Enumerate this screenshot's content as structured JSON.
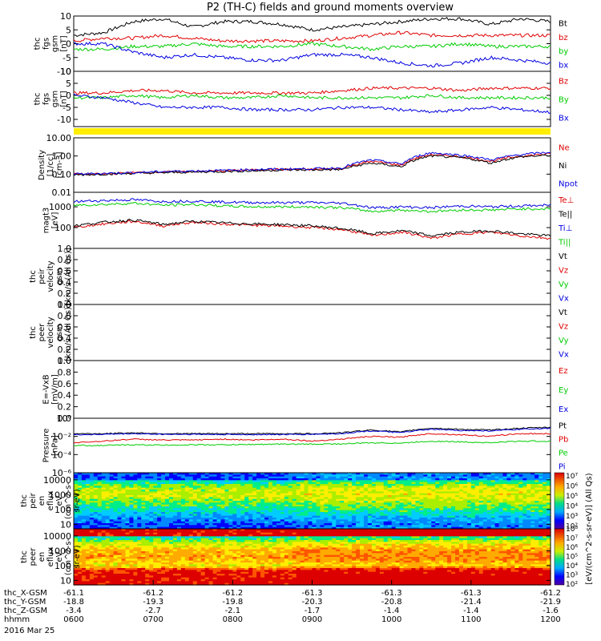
{
  "title": "P2 (TH-C) fields and ground moments overview",
  "colors": {
    "black": "#000000",
    "red": "#e00000",
    "green": "#00cc00",
    "blue": "#0000e0",
    "yellow": "#ffee00"
  },
  "chart_data": [
    {
      "type": "line",
      "ylabel": [
        "thc",
        "fgs",
        "gsm",
        "[nT]"
      ],
      "yticks": [
        10,
        5,
        0,
        -5,
        -10
      ],
      "ylim": [
        -10,
        10
      ],
      "series": [
        {
          "name": "Bt",
          "color": "black",
          "values": [
            3,
            4,
            8,
            9,
            6,
            8,
            8,
            7,
            5,
            6,
            7,
            8,
            9,
            9,
            7,
            9,
            8
          ]
        },
        {
          "name": "bz",
          "color": "red",
          "values": [
            1,
            2,
            2,
            3,
            2,
            1,
            1,
            1,
            1,
            2,
            3,
            4,
            3,
            3,
            3,
            3,
            3
          ]
        },
        {
          "name": "by",
          "color": "green",
          "values": [
            -2,
            -2,
            -1,
            -1,
            0,
            -1,
            -1,
            -1,
            0,
            -1,
            -2,
            -1,
            -1,
            0,
            -1,
            -1,
            -1
          ]
        },
        {
          "name": "bx",
          "color": "blue",
          "values": [
            0,
            0,
            -3,
            -5,
            -4,
            -5,
            -6,
            -6,
            -4,
            -4,
            -5,
            -7,
            -8,
            -7,
            -5,
            -6,
            -7
          ]
        }
      ]
    },
    {
      "type": "line",
      "ylabel": [
        "thc",
        "fgs",
        "gsm",
        "[nT]"
      ],
      "yticks": [
        10,
        5,
        0,
        -5,
        -10
      ],
      "ylim": [
        -13,
        10
      ],
      "series": [
        {
          "name": "Bz",
          "color": "red",
          "values": [
            1,
            1,
            2,
            2,
            1,
            1,
            1,
            1,
            1,
            2,
            3,
            3,
            3,
            2,
            3,
            3,
            3
          ]
        },
        {
          "name": "By",
          "color": "green",
          "values": [
            -1,
            -1,
            0,
            -1,
            0,
            -1,
            -1,
            0,
            -1,
            -1,
            -1,
            -1,
            0,
            -1,
            -1,
            -1,
            -1
          ]
        },
        {
          "name": "Bx",
          "color": "blue",
          "values": [
            0,
            -1,
            -3,
            -5,
            -5,
            -5,
            -6,
            -6,
            -6,
            -5,
            -5,
            -6,
            -7,
            -6,
            -5,
            -6,
            -7
          ]
        }
      ]
    },
    {
      "type": "line",
      "ylabel": [
        "Density",
        "[1/cc]",
        "[cm-3]"
      ],
      "yscale": "log",
      "yticks": [
        "10.00",
        "1.00",
        "0.10",
        "0.01"
      ],
      "tickvals": [
        10,
        1,
        0.1,
        0.01
      ],
      "ylim": [
        0.01,
        10
      ],
      "series": [
        {
          "name": "Ne",
          "color": "red",
          "values": [
            0.1,
            0.1,
            0.12,
            0.13,
            0.14,
            0.15,
            0.17,
            0.18,
            0.18,
            0.2,
            0.5,
            0.3,
            1.2,
            0.9,
            0.5,
            1,
            1.3
          ]
        },
        {
          "name": "Ni",
          "color": "black",
          "values": [
            0.09,
            0.1,
            0.11,
            0.12,
            0.13,
            0.14,
            0.15,
            0.17,
            0.17,
            0.18,
            0.4,
            0.25,
            1,
            0.8,
            0.4,
            0.9,
            1.1
          ]
        },
        {
          "name": "Npot",
          "color": "blue",
          "values": [
            0.1,
            0.11,
            0.12,
            0.14,
            0.15,
            0.16,
            0.18,
            0.19,
            0.2,
            0.22,
            0.6,
            0.35,
            1.5,
            1.1,
            0.6,
            1.2,
            1.6
          ]
        }
      ]
    },
    {
      "type": "line",
      "ylabel": [
        "magt3",
        "[eV]"
      ],
      "yscale": "log",
      "yticks": [
        "1000",
        "100"
      ],
      "tickvals": [
        1000,
        100
      ],
      "ylim": [
        10,
        5000
      ],
      "series": [
        {
          "name": "Te⊥",
          "color": "red",
          "values": [
            100,
            150,
            200,
            120,
            180,
            150,
            130,
            120,
            100,
            80,
            40,
            60,
            30,
            50,
            60,
            40,
            30
          ]
        },
        {
          "name": "Te||",
          "color": "black",
          "values": [
            120,
            180,
            230,
            140,
            200,
            170,
            150,
            140,
            120,
            90,
            50,
            70,
            40,
            60,
            70,
            50,
            40
          ]
        },
        {
          "name": "Ti⊥",
          "color": "blue",
          "values": [
            1800,
            2000,
            2200,
            1800,
            1900,
            1700,
            1600,
            1600,
            1600,
            1500,
            900,
            1000,
            900,
            1100,
            1000,
            1100,
            1200
          ]
        },
        {
          "name": "Ti||",
          "color": "green",
          "values": [
            1200,
            1300,
            1500,
            1200,
            1300,
            1100,
            1000,
            1000,
            1000,
            900,
            600,
            700,
            600,
            700,
            700,
            800,
            800
          ]
        }
      ]
    },
    {
      "type": "line",
      "ylabel": [
        "thc",
        "peir",
        "velocity",
        "gsm",
        "[km/s (All Qs)]"
      ],
      "yticks": [
        "1.0",
        "0.8",
        "0.6",
        "0.4",
        "0.2",
        "0.0"
      ],
      "ylim": [
        0,
        1
      ],
      "series": [
        {
          "name": "Vt",
          "color": "black",
          "values": []
        },
        {
          "name": "Vz",
          "color": "red",
          "values": []
        },
        {
          "name": "Vy",
          "color": "green",
          "values": []
        },
        {
          "name": "Vx",
          "color": "blue",
          "values": []
        }
      ]
    },
    {
      "type": "line",
      "ylabel": [
        "thc",
        "peer",
        "velocity",
        "gsm",
        "[km/s (All Qs)]"
      ],
      "yticks": [
        "1.0",
        "0.8",
        "0.6",
        "0.4",
        "0.2",
        "0.0"
      ],
      "ylim": [
        0,
        1
      ],
      "series": [
        {
          "name": "Vt",
          "color": "black",
          "values": []
        },
        {
          "name": "Vz",
          "color": "red",
          "values": []
        },
        {
          "name": "Vy",
          "color": "green",
          "values": []
        },
        {
          "name": "Vx",
          "color": "blue",
          "values": []
        }
      ]
    },
    {
      "type": "line",
      "ylabel": [
        "E=-VxB",
        "[mV/m]"
      ],
      "yticks": [
        "1.0",
        "0.8",
        "0.6",
        "0.4",
        "0.2",
        "0.0"
      ],
      "ylim": [
        0,
        1
      ],
      "series": [
        {
          "name": "Ez",
          "color": "red",
          "values": []
        },
        {
          "name": "Ey",
          "color": "green",
          "values": []
        },
        {
          "name": "Ex",
          "color": "blue",
          "values": []
        }
      ]
    },
    {
      "type": "line",
      "ylabel": [
        "Pressure",
        "[nPa]"
      ],
      "yscale": "log",
      "yticks": [
        "10⁰",
        "10⁻²",
        "10⁻⁴",
        "10⁻⁶"
      ],
      "tickvals": [
        1,
        0.01,
        0.0001,
        1e-06
      ],
      "ylim": [
        1e-06,
        1
      ],
      "series": [
        {
          "name": "Pt",
          "color": "black",
          "values": [
            0.02,
            0.02,
            0.025,
            0.02,
            0.02,
            0.02,
            0.02,
            0.02,
            0.02,
            0.025,
            0.05,
            0.03,
            0.08,
            0.06,
            0.05,
            0.08,
            0.1
          ]
        },
        {
          "name": "Pb",
          "color": "red",
          "values": [
            0.002,
            0.003,
            0.005,
            0.004,
            0.004,
            0.005,
            0.004,
            0.005,
            0.003,
            0.005,
            0.01,
            0.008,
            0.02,
            0.015,
            0.01,
            0.02,
            0.02
          ]
        },
        {
          "name": "Pe",
          "color": "green",
          "values": [
            0.001,
            0.001,
            0.0012,
            0.0011,
            0.0012,
            0.0012,
            0.0013,
            0.0014,
            0.0014,
            0.0015,
            0.002,
            0.0018,
            0.003,
            0.0025,
            0.002,
            0.003,
            0.003
          ]
        },
        {
          "name": "Pi",
          "color": "blue",
          "values": [
            0.015,
            0.017,
            0.02,
            0.017,
            0.017,
            0.016,
            0.016,
            0.016,
            0.017,
            0.02,
            0.04,
            0.025,
            0.06,
            0.045,
            0.04,
            0.06,
            0.08
          ]
        }
      ]
    },
    {
      "type": "heatmap",
      "ylabel": [
        "thc",
        "peir",
        "en",
        "eflux",
        "eV",
        "(cm^2-s-",
        "sr-eV)"
      ],
      "yticks": [
        "10000",
        "1000",
        "100",
        "10"
      ],
      "tickvals": [
        10000,
        1000,
        100,
        10
      ],
      "ylim": [
        5,
        30000
      ],
      "profile": [
        [
          10000,
          0.3
        ],
        [
          3000,
          0.5
        ],
        [
          1000,
          0.55
        ],
        [
          300,
          0.45
        ],
        [
          100,
          0.35
        ],
        [
          30,
          0.2
        ],
        [
          10,
          0.12
        ]
      ]
    },
    {
      "type": "heatmap",
      "ylabel": [
        "thc",
        "peer",
        "en",
        "eflux",
        "eV",
        "(cm^2-s-",
        "sr-eV)"
      ],
      "yticks": [
        "10000",
        "1000",
        "100",
        "10"
      ],
      "tickvals": [
        10000,
        1000,
        100,
        10
      ],
      "ylim": [
        5,
        30000
      ],
      "profile": [
        [
          10000,
          0.3
        ],
        [
          3000,
          0.55
        ],
        [
          1000,
          0.7
        ],
        [
          300,
          0.72
        ],
        [
          100,
          0.6
        ],
        [
          50,
          0.9
        ],
        [
          10,
          0.95
        ]
      ]
    }
  ],
  "colorbar": {
    "labels": [
      "10⁷",
      "10⁶",
      "10⁵",
      "10⁴",
      "10³",
      "10²",
      "10⁸",
      "10⁷",
      "10⁶",
      "10⁵",
      "10⁴",
      "10³",
      "10²"
    ],
    "units": "[eV/(cm^2-s-sr-eV)] (All Qs)"
  },
  "xaxis": {
    "rows": [
      {
        "label": "thc_X-GSM",
        "values": [
          "-61.1",
          "-61.2",
          "-61.2",
          "-61.3",
          "-61.3",
          "-61.3",
          "-61.2"
        ]
      },
      {
        "label": "thc_Y-GSM",
        "values": [
          "-18.8",
          "-19.3",
          "-19.8",
          "-20.3",
          "-20.8",
          "-21.4",
          "-21.9"
        ]
      },
      {
        "label": "thc_Z-GSM",
        "values": [
          "-3.4",
          "-2.7",
          "-2.1",
          "-1.7",
          "-1.4",
          "-1.4",
          "-1.6"
        ]
      },
      {
        "label": "hhmm",
        "values": [
          "0600",
          "0700",
          "0800",
          "0900",
          "1000",
          "1100",
          "1200"
        ]
      }
    ],
    "date": "2016 Mar 25"
  }
}
